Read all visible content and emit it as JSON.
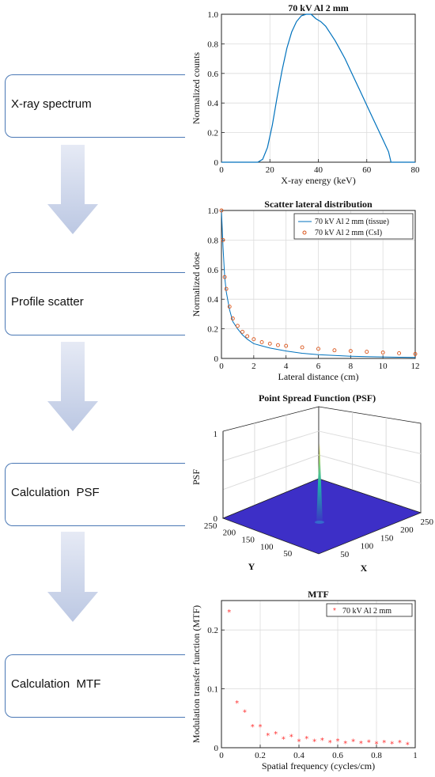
{
  "steps": [
    {
      "label": "X-ray spectrum"
    },
    {
      "label": "Profile scatter"
    },
    {
      "label": "Calculation  PSF"
    },
    {
      "label": "Calculation  MTF"
    }
  ],
  "colors": {
    "box_border": "#4a78b5",
    "arrow": "#c9d3e9",
    "line": "#0072bd",
    "scatter_marker": "#d95319",
    "mtf_marker": "#ff3333",
    "surface": "#3d2fc7"
  },
  "chart_data": [
    {
      "type": "line",
      "title": "70 kV Al 2 mm",
      "xlabel": "X-ray energy (keV)",
      "ylabel": "Normalized counts",
      "xlim": [
        0,
        80
      ],
      "ylim": [
        0,
        1
      ],
      "xticks": [
        "0",
        "20",
        "40",
        "60",
        "80"
      ],
      "yticks": [
        "0",
        "0.2",
        "0.4",
        "0.6",
        "0.8",
        "1.0"
      ],
      "grid": true,
      "series": [
        {
          "x": [
            0,
            15,
            17,
            19,
            21,
            23,
            25,
            27,
            29,
            31,
            33,
            35,
            37,
            39,
            41,
            43,
            45,
            47,
            49,
            51,
            53,
            55,
            57,
            59,
            61,
            63,
            65,
            67,
            69,
            70,
            80
          ],
          "values": [
            0,
            0,
            0.02,
            0.1,
            0.25,
            0.44,
            0.62,
            0.77,
            0.88,
            0.95,
            0.99,
            1.0,
            1.0,
            0.97,
            0.95,
            0.92,
            0.87,
            0.82,
            0.76,
            0.7,
            0.63,
            0.56,
            0.49,
            0.42,
            0.35,
            0.28,
            0.21,
            0.14,
            0.07,
            0,
            0
          ]
        }
      ]
    },
    {
      "type": "line",
      "title": "Scatter lateral distribution",
      "xlabel": "Lateral distance (cm)",
      "ylabel": "Normalized dose",
      "xlim": [
        0,
        12
      ],
      "ylim": [
        0,
        1
      ],
      "xticks": [
        "0",
        "2",
        "4",
        "6",
        "8",
        "10",
        "12"
      ],
      "yticks": [
        "0",
        "0.2",
        "0.4",
        "0.6",
        "0.8",
        "1.0"
      ],
      "grid": true,
      "legend": "top-right",
      "series": [
        {
          "name": "70 kV Al 2 mm (tissue)",
          "x": [
            0,
            0.1,
            0.2,
            0.3,
            0.5,
            0.7,
            1,
            1.3,
            1.6,
            2,
            2.5,
            3,
            3.5,
            4,
            5,
            6,
            7,
            8,
            9,
            10,
            11,
            12
          ],
          "values": [
            1.0,
            0.75,
            0.55,
            0.45,
            0.33,
            0.25,
            0.2,
            0.16,
            0.13,
            0.1,
            0.085,
            0.07,
            0.06,
            0.05,
            0.035,
            0.025,
            0.02,
            0.015,
            0.012,
            0.01,
            0.008,
            0.007
          ]
        },
        {
          "name": "70 kV Al 2 mm (CsI)",
          "x": [
            0,
            0.1,
            0.2,
            0.3,
            0.5,
            0.7,
            1,
            1.3,
            1.6,
            2,
            2.5,
            3,
            3.5,
            4,
            5,
            6,
            7,
            8,
            9,
            10,
            11,
            12
          ],
          "values": [
            1.0,
            0.8,
            0.55,
            0.47,
            0.35,
            0.27,
            0.22,
            0.18,
            0.15,
            0.13,
            0.11,
            0.1,
            0.09,
            0.085,
            0.075,
            0.065,
            0.055,
            0.05,
            0.045,
            0.04,
            0.035,
            0.03
          ]
        }
      ]
    },
    {
      "type": "surface",
      "title": "Point Spread Function (PSF)",
      "xlabel": "X",
      "ylabel": "Y",
      "zlabel": "PSF",
      "zticks": [
        "0",
        "1"
      ],
      "xticks": [
        "50",
        "100",
        "150",
        "200",
        "250"
      ],
      "yticks": [
        "50",
        "100",
        "150",
        "200",
        "250"
      ],
      "peak": {
        "x": 128,
        "y": 128,
        "z": 1
      }
    },
    {
      "type": "scatter",
      "title": "MTF",
      "xlabel": "Spatial frequency (cycles/cm)",
      "ylabel": "Modulation transfer function (MTF)",
      "xlim": [
        0,
        1
      ],
      "ylim": [
        0,
        0.25
      ],
      "xticks": [
        "0",
        "0.2",
        "0.4",
        "0.6",
        "0.8",
        "1"
      ],
      "yticks": [
        "0",
        "0.1",
        "0.2"
      ],
      "grid": true,
      "legend": "top-right",
      "series": [
        {
          "name": "70 kV Al 2 mm",
          "x": [
            0.04,
            0.08,
            0.12,
            0.16,
            0.2,
            0.24,
            0.28,
            0.32,
            0.36,
            0.4,
            0.44,
            0.48,
            0.52,
            0.56,
            0.6,
            0.64,
            0.68,
            0.72,
            0.76,
            0.8,
            0.84,
            0.88,
            0.92,
            0.96
          ],
          "values": [
            0.23,
            0.075,
            0.06,
            0.035,
            0.035,
            0.02,
            0.023,
            0.014,
            0.018,
            0.01,
            0.015,
            0.01,
            0.012,
            0.008,
            0.011,
            0.007,
            0.01,
            0.007,
            0.009,
            0.006,
            0.008,
            0.006,
            0.008,
            0.005
          ]
        }
      ]
    }
  ]
}
